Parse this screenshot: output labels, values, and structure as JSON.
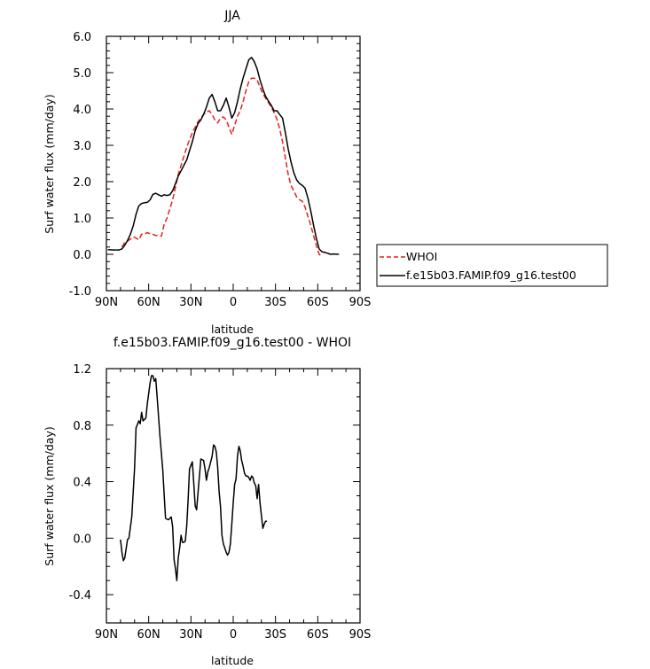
{
  "chart_data": [
    {
      "type": "line",
      "title": "JJA",
      "xlabel": "latitude",
      "ylabel": "Surf water flux (mm/day)",
      "xlim": [
        90,
        -90
      ],
      "ylim": [
        -1.0,
        6.0
      ],
      "x_ticks": [
        90,
        60,
        30,
        0,
        -30,
        -60,
        -90
      ],
      "x_tick_labels": [
        "90N",
        "60N",
        "30N",
        "0",
        "30S",
        "60S",
        "90S"
      ],
      "y_ticks": [
        -1.0,
        0.0,
        1.0,
        2.0,
        3.0,
        4.0,
        5.0,
        6.0
      ],
      "y_tick_labels": [
        "-1.0",
        "0.0",
        "1.0",
        "2.0",
        "3.0",
        "4.0",
        "5.0",
        "6.0"
      ],
      "legend": "right",
      "series": [
        {
          "name": "WHOI",
          "color": "#e8201c",
          "dash": "dashed",
          "points": [
            [
              79,
              0.2
            ],
            [
              77,
              0.33
            ],
            [
              75,
              0.36
            ],
            [
              73,
              0.42
            ],
            [
              71,
              0.48
            ],
            [
              69,
              0.45
            ],
            [
              67,
              0.4
            ],
            [
              65,
              0.55
            ],
            [
              63,
              0.55
            ],
            [
              61,
              0.6
            ],
            [
              59,
              0.56
            ],
            [
              57,
              0.55
            ],
            [
              55,
              0.52
            ],
            [
              53,
              0.52
            ],
            [
              51,
              0.5
            ],
            [
              49,
              0.82
            ],
            [
              47,
              1.0
            ],
            [
              45,
              1.25
            ],
            [
              43,
              1.5
            ],
            [
              41,
              1.85
            ],
            [
              39,
              2.2
            ],
            [
              37,
              2.45
            ],
            [
              35,
              2.7
            ],
            [
              33,
              2.95
            ],
            [
              31,
              3.15
            ],
            [
              29,
              3.35
            ],
            [
              27,
              3.5
            ],
            [
              25,
              3.65
            ],
            [
              23,
              3.75
            ],
            [
              21,
              3.85
            ],
            [
              19,
              3.92
            ],
            [
              17,
              3.95
            ],
            [
              15,
              3.85
            ],
            [
              13,
              3.7
            ],
            [
              11,
              3.62
            ],
            [
              9,
              3.75
            ],
            [
              7,
              3.78
            ],
            [
              5,
              3.7
            ],
            [
              3,
              3.5
            ],
            [
              1,
              3.3
            ],
            [
              -1,
              3.55
            ],
            [
              -3,
              3.8
            ],
            [
              -5,
              3.95
            ],
            [
              -7,
              4.2
            ],
            [
              -9,
              4.5
            ],
            [
              -11,
              4.75
            ],
            [
              -13,
              4.85
            ],
            [
              -15,
              4.85
            ],
            [
              -17,
              4.8
            ],
            [
              -19,
              4.6
            ],
            [
              -21,
              4.42
            ],
            [
              -23,
              4.3
            ],
            [
              -25,
              4.18
            ],
            [
              -27,
              4.05
            ],
            [
              -29,
              3.9
            ],
            [
              -31,
              3.72
            ],
            [
              -33,
              3.45
            ],
            [
              -35,
              3.1
            ],
            [
              -37,
              2.65
            ],
            [
              -39,
              2.2
            ],
            [
              -41,
              1.9
            ],
            [
              -43,
              1.75
            ],
            [
              -45,
              1.58
            ],
            [
              -47,
              1.5
            ],
            [
              -49,
              1.46
            ],
            [
              -51,
              1.3
            ],
            [
              -53,
              1.05
            ],
            [
              -55,
              0.8
            ],
            [
              -57,
              0.52
            ],
            [
              -59,
              0.25
            ],
            [
              -61,
              0.0
            ],
            [
              -62,
              -0.03
            ]
          ]
        },
        {
          "name": "f.e15b03.FAMIP.f09_g16.test00",
          "color": "#000000",
          "dash": "solid",
          "points": [
            [
              89,
              0.13
            ],
            [
              85,
              0.12
            ],
            [
              81,
              0.12
            ],
            [
              79,
              0.15
            ],
            [
              77,
              0.25
            ],
            [
              75,
              0.38
            ],
            [
              73,
              0.55
            ],
            [
              71,
              0.78
            ],
            [
              69,
              1.1
            ],
            [
              67,
              1.33
            ],
            [
              65,
              1.4
            ],
            [
              63,
              1.42
            ],
            [
              61,
              1.43
            ],
            [
              59,
              1.5
            ],
            [
              57,
              1.65
            ],
            [
              55,
              1.68
            ],
            [
              53,
              1.64
            ],
            [
              51,
              1.6
            ],
            [
              49,
              1.64
            ],
            [
              47,
              1.62
            ],
            [
              45,
              1.64
            ],
            [
              43,
              1.75
            ],
            [
              41,
              1.95
            ],
            [
              39,
              2.15
            ],
            [
              37,
              2.3
            ],
            [
              35,
              2.45
            ],
            [
              33,
              2.6
            ],
            [
              31,
              2.85
            ],
            [
              29,
              3.1
            ],
            [
              27,
              3.4
            ],
            [
              25,
              3.6
            ],
            [
              23,
              3.7
            ],
            [
              21,
              3.85
            ],
            [
              19,
              4.05
            ],
            [
              17,
              4.3
            ],
            [
              15,
              4.4
            ],
            [
              13,
              4.2
            ],
            [
              11,
              3.95
            ],
            [
              9,
              3.95
            ],
            [
              7,
              4.1
            ],
            [
              5,
              4.3
            ],
            [
              3,
              4.05
            ],
            [
              1,
              3.75
            ],
            [
              -1,
              3.9
            ],
            [
              -3,
              4.2
            ],
            [
              -5,
              4.55
            ],
            [
              -7,
              4.85
            ],
            [
              -9,
              5.1
            ],
            [
              -11,
              5.35
            ],
            [
              -13,
              5.42
            ],
            [
              -15,
              5.3
            ],
            [
              -17,
              5.1
            ],
            [
              -19,
              4.8
            ],
            [
              -21,
              4.55
            ],
            [
              -23,
              4.35
            ],
            [
              -25,
              4.22
            ],
            [
              -27,
              4.1
            ],
            [
              -29,
              3.95
            ],
            [
              -31,
              3.95
            ],
            [
              -33,
              3.85
            ],
            [
              -35,
              3.75
            ],
            [
              -37,
              3.35
            ],
            [
              -39,
              2.9
            ],
            [
              -41,
              2.55
            ],
            [
              -43,
              2.25
            ],
            [
              -45,
              2.05
            ],
            [
              -47,
              1.95
            ],
            [
              -49,
              1.9
            ],
            [
              -51,
              1.82
            ],
            [
              -53,
              1.55
            ],
            [
              -55,
              1.2
            ],
            [
              -57,
              0.8
            ],
            [
              -59,
              0.45
            ],
            [
              -61,
              0.15
            ],
            [
              -63,
              0.07
            ],
            [
              -65,
              0.05
            ],
            [
              -67,
              0.03
            ],
            [
              -69,
              0.0
            ],
            [
              -71,
              0.01
            ],
            [
              -75,
              0.0
            ]
          ]
        }
      ]
    },
    {
      "type": "line",
      "title": "f.e15b03.FAMIP.f09_g16.test00 - WHOI",
      "xlabel": "latitude",
      "ylabel": "Surf water flux (mm/day)",
      "xlim": [
        90,
        -90
      ],
      "ylim": [
        -0.6,
        1.2
      ],
      "x_ticks": [
        90,
        60,
        30,
        0,
        -30,
        -60,
        -90
      ],
      "x_tick_labels": [
        "90N",
        "60N",
        "30N",
        "0",
        "30S",
        "60S",
        "90S"
      ],
      "y_ticks": [
        -0.4,
        0.0,
        0.4,
        0.8,
        1.2
      ],
      "y_tick_labels": [
        "-0.4",
        "0.0",
        "0.4",
        "0.8",
        "1.2"
      ],
      "series": [
        {
          "color": "#000000",
          "dash": "solid",
          "points": [
            [
              80,
              -0.01
            ],
            [
              79,
              -0.1
            ],
            [
              78,
              -0.16
            ],
            [
              77,
              -0.14
            ],
            [
              75,
              -0.01
            ],
            [
              74,
              0.0
            ],
            [
              72,
              0.15
            ],
            [
              70,
              0.5
            ],
            [
              69,
              0.78
            ],
            [
              67,
              0.83
            ],
            [
              66,
              0.81
            ],
            [
              65,
              0.89
            ],
            [
              64,
              0.83
            ],
            [
              62,
              0.85
            ],
            [
              61,
              0.95
            ],
            [
              59,
              1.1
            ],
            [
              58,
              1.15
            ],
            [
              57,
              1.15
            ],
            [
              56,
              1.11
            ],
            [
              55,
              1.13
            ],
            [
              54,
              1.0
            ],
            [
              52,
              0.72
            ],
            [
              50,
              0.48
            ],
            [
              49,
              0.31
            ],
            [
              48,
              0.14
            ],
            [
              46,
              0.13
            ],
            [
              44,
              0.15
            ],
            [
              43,
              0.08
            ],
            [
              42,
              -0.15
            ],
            [
              41,
              -0.22
            ],
            [
              40,
              -0.3
            ],
            [
              39,
              -0.14
            ],
            [
              38,
              -0.07
            ],
            [
              37,
              0.02
            ],
            [
              36,
              -0.03
            ],
            [
              35,
              -0.03
            ],
            [
              34,
              -0.02
            ],
            [
              33,
              0.09
            ],
            [
              32,
              0.28
            ],
            [
              31,
              0.49
            ],
            [
              29,
              0.54
            ],
            [
              28,
              0.39
            ],
            [
              27,
              0.23
            ],
            [
              26,
              0.2
            ],
            [
              25,
              0.32
            ],
            [
              23,
              0.56
            ],
            [
              21,
              0.55
            ],
            [
              20,
              0.49
            ],
            [
              19,
              0.41
            ],
            [
              18,
              0.47
            ],
            [
              17,
              0.5
            ],
            [
              15,
              0.58
            ],
            [
              14,
              0.66
            ],
            [
              13,
              0.65
            ],
            [
              12,
              0.61
            ],
            [
              11,
              0.5
            ],
            [
              10,
              0.33
            ],
            [
              9,
              0.22
            ],
            [
              8,
              0.02
            ],
            [
              7,
              -0.04
            ],
            [
              6,
              -0.07
            ],
            [
              5,
              -0.1
            ],
            [
              4,
              -0.12
            ],
            [
              3,
              -0.1
            ],
            [
              2,
              -0.04
            ],
            [
              1,
              0.1
            ],
            [
              0,
              0.25
            ],
            [
              -1,
              0.38
            ],
            [
              -2,
              0.42
            ],
            [
              -3,
              0.58
            ],
            [
              -4,
              0.65
            ],
            [
              -5,
              0.62
            ],
            [
              -6,
              0.55
            ],
            [
              -7,
              0.51
            ],
            [
              -8,
              0.46
            ],
            [
              -9,
              0.44
            ],
            [
              -10,
              0.44
            ],
            [
              -11,
              0.43
            ],
            [
              -12,
              0.41
            ],
            [
              -13,
              0.44
            ],
            [
              -14,
              0.43
            ],
            [
              -15,
              0.39
            ],
            [
              -16,
              0.37
            ],
            [
              -17,
              0.28
            ],
            [
              -18,
              0.38
            ],
            [
              -19,
              0.25
            ],
            [
              -20,
              0.16
            ],
            [
              -21,
              0.07
            ],
            [
              -22,
              0.1
            ],
            [
              -23,
              0.12
            ],
            [
              -24,
              0.12
            ]
          ]
        }
      ]
    }
  ]
}
